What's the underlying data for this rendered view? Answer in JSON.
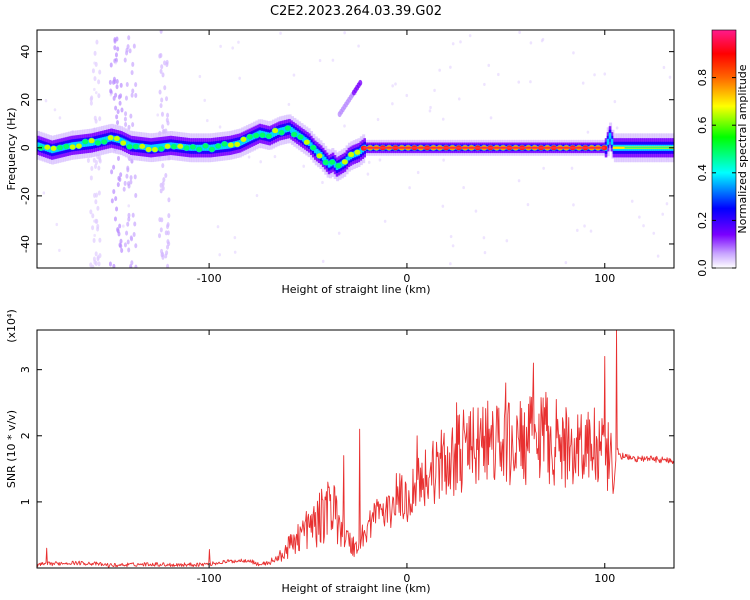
{
  "chart_data": [
    {
      "type": "heatmap",
      "title": "C2E2.2023.264.03.39.G02",
      "xlabel": "Height of straight line (km)",
      "ylabel": "Frequency (Hz)",
      "xlim": [
        -187,
        135
      ],
      "ylim": [
        -50,
        49
      ],
      "xticks": [
        -100,
        0,
        100
      ],
      "yticks": [
        -40,
        -20,
        0,
        20,
        40
      ],
      "colorbar": {
        "label": "Normalized spectral amplitude",
        "range": [
          0,
          1
        ],
        "ticks": [
          0.0,
          0.2,
          0.4,
          0.6,
          0.8
        ],
        "colors": [
          "#ffffff",
          "#c9a6ff",
          "#7a00ff",
          "#0000ff",
          "#00ffff",
          "#00ff00",
          "#ffff00",
          "#ff6600",
          "#ff0000",
          "#ff1a8c"
        ]
      },
      "ridge": {
        "x": [
          -187,
          -180,
          -170,
          -160,
          -150,
          -145,
          -140,
          -130,
          -120,
          -110,
          -100,
          -90,
          -85,
          -80,
          -75,
          -70,
          -65,
          -60,
          -55,
          -50,
          -47,
          -44,
          -42,
          -40,
          -38,
          -36,
          -34,
          -32,
          -30,
          -28,
          -25,
          -22,
          -20,
          -10,
          0,
          10,
          30,
          50,
          70,
          90,
          100,
          102,
          104,
          110,
          120,
          135
        ],
        "y": [
          1,
          -1,
          1,
          2,
          4,
          3,
          1,
          0,
          1,
          0,
          0,
          1,
          2,
          4,
          6,
          5,
          7,
          8,
          5,
          2,
          -1,
          -3,
          -5,
          -7,
          -6,
          -8,
          -7,
          -6,
          -4,
          -3,
          -2,
          0,
          0,
          0,
          0,
          0,
          0,
          0,
          0,
          0,
          0,
          5,
          0,
          0,
          0,
          0
        ]
      }
    },
    {
      "type": "line",
      "xlabel": "Height of straight line (km)",
      "ylabel": "SNR (10 * v/v)",
      "yscale_label": "(x10⁴)",
      "xlim": [
        -187,
        135
      ],
      "ylim": [
        0,
        3.6
      ],
      "xticks": [
        -100,
        0,
        100
      ],
      "yticks": [
        1,
        2,
        3
      ],
      "color": "#e83030",
      "envelope": {
        "x": [
          -187,
          -170,
          -160,
          -150,
          -140,
          -130,
          -120,
          -110,
          -100,
          -90,
          -80,
          -75,
          -70,
          -65,
          -60,
          -55,
          -50,
          -45,
          -40,
          -35,
          -30,
          -25,
          -20,
          -15,
          -10,
          -5,
          0,
          5,
          10,
          20,
          30,
          40,
          50,
          60,
          70,
          80,
          90,
          100,
          103,
          104,
          106,
          108,
          115,
          125,
          135
        ],
        "y": [
          0.05,
          0.08,
          0.07,
          0.04,
          0.05,
          0.06,
          0.05,
          0.05,
          0.06,
          0.1,
          0.12,
          0.05,
          0.08,
          0.15,
          0.3,
          0.5,
          0.6,
          0.7,
          0.9,
          0.8,
          0.4,
          0.3,
          0.6,
          0.9,
          0.8,
          1.1,
          1.0,
          1.3,
          1.4,
          1.6,
          1.8,
          1.9,
          1.85,
          1.9,
          2.0,
          1.8,
          1.9,
          1.7,
          1.6,
          1.0,
          1.8,
          1.7,
          1.65,
          1.65,
          1.62
        ]
      },
      "peaks": [
        {
          "x": -182,
          "y": 0.3
        },
        {
          "x": -100,
          "y": 0.28
        },
        {
          "x": -40,
          "y": 1.3
        },
        {
          "x": -32,
          "y": 1.7
        },
        {
          "x": -24,
          "y": 2.1
        },
        {
          "x": 5,
          "y": 2.0
        },
        {
          "x": 25,
          "y": 2.5
        },
        {
          "x": 50,
          "y": 2.8
        },
        {
          "x": 64,
          "y": 3.1
        },
        {
          "x": 100,
          "y": 3.2
        },
        {
          "x": 106,
          "y": 3.6
        }
      ]
    }
  ]
}
